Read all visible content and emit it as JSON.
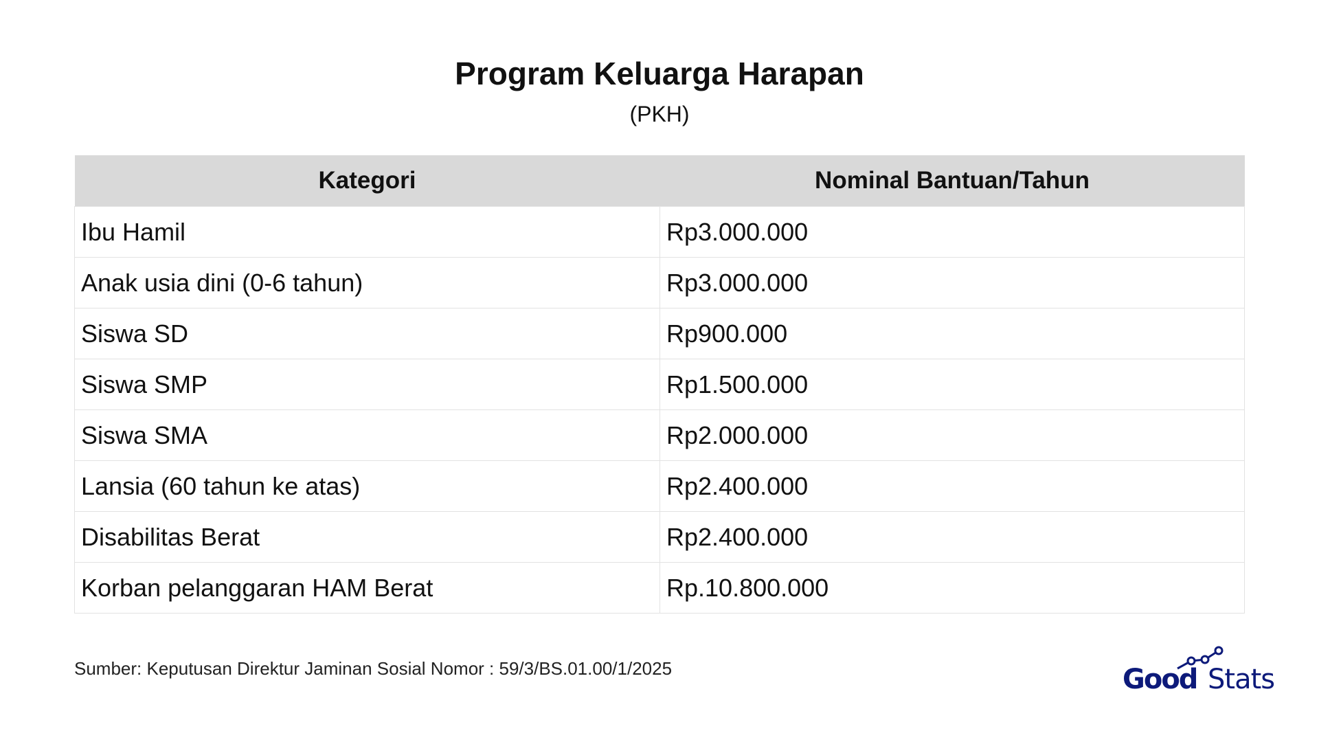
{
  "title": "Program Keluarga Harapan",
  "subtitle": "(PKH)",
  "table": {
    "headers": [
      "Kategori",
      "Nominal Bantuan/Tahun"
    ],
    "rows": [
      [
        "Ibu Hamil",
        "Rp3.000.000"
      ],
      [
        "Anak usia dini (0-6 tahun)",
        "Rp3.000.000"
      ],
      [
        "Siswa SD",
        "Rp900.000"
      ],
      [
        "Siswa SMP",
        "Rp1.500.000"
      ],
      [
        "Siswa SMA",
        "Rp2.000.000"
      ],
      [
        "Lansia (60 tahun ke atas)",
        "Rp2.400.000"
      ],
      [
        "Disabilitas Berat",
        "Rp2.400.000"
      ],
      [
        "Korban pelanggaran HAM Berat",
        "Rp.10.800.000"
      ]
    ]
  },
  "source": "Sumber:  Keputusan Direktur Jaminan Sosial Nomor : 59/3/BS.01.00/1/2025",
  "logo": {
    "text_bold": "Good",
    "text_light": "Stats",
    "color": "#0d1a7a"
  }
}
